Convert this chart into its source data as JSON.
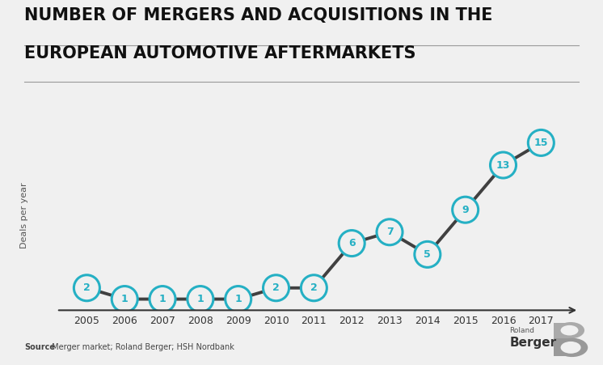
{
  "title_line1": "NUMBER OF MERGERS AND ACQUISITIONS IN THE",
  "title_line2": "EUROPEAN AUTOMOTIVE AFTERMARKETS",
  "years": [
    2005,
    2006,
    2007,
    2008,
    2009,
    2010,
    2011,
    2012,
    2013,
    2014,
    2015,
    2016,
    2017
  ],
  "values": [
    2,
    1,
    1,
    1,
    1,
    2,
    2,
    6,
    7,
    5,
    9,
    13,
    15
  ],
  "ylabel": "Deals per year",
  "source_bold": "Source",
  "source_rest": " Merger market; Roland Berger; HSH Nordbank",
  "background_color": "#f0f0f0",
  "plot_bg_color": "#f0f0f0",
  "circle_edge_color": "#25b0c4",
  "line_color": "#404040",
  "text_color": "#25b0c4",
  "title_color": "#111111",
  "axis_color": "#333333",
  "ylabel_color": "#555555",
  "circle_linewidth": 2.2,
  "line_width": 2.8,
  "ylim": [
    0,
    17
  ],
  "xlim": [
    2004.3,
    2018.0
  ],
  "title_fontsize": 15,
  "circle_fontsize": 9
}
